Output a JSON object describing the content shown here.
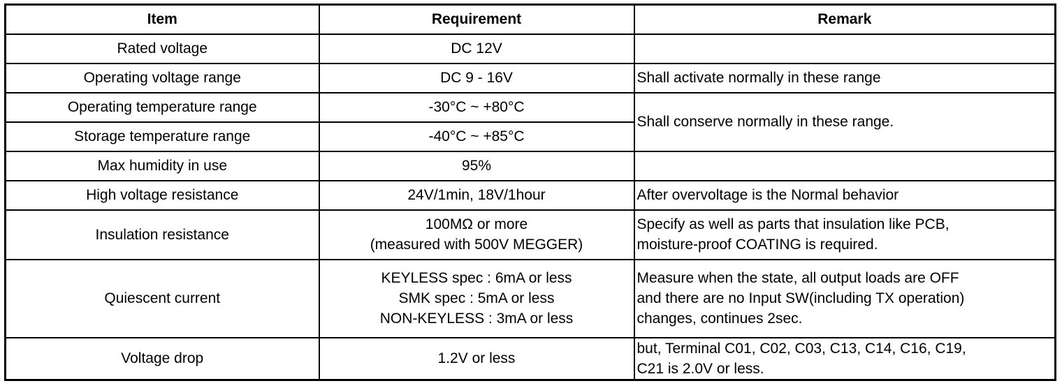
{
  "headers": [
    "Item",
    "Requirement",
    "Remark"
  ],
  "rows": [
    {
      "item": "Rated voltage",
      "requirement": [
        "DC 12V"
      ],
      "remark": []
    },
    {
      "item": "Operating voltage range",
      "requirement": [
        "DC 9 - 16V"
      ],
      "remark": [
        "Shall activate normally in these range"
      ]
    },
    {
      "item": "Operating temperature range",
      "requirement": [
        "-30°C ~ +80°C"
      ],
      "remark": [
        "Shall conserve normally in these range."
      ]
    },
    {
      "item": "Storage temperature range",
      "requirement": [
        "-40°C ~ +85°C"
      ],
      "remark": []
    },
    {
      "item": "Max humidity in use",
      "requirement": [
        "95%"
      ],
      "remark": []
    },
    {
      "item": "High voltage resistance",
      "requirement": [
        "24V/1min, 18V/1hour"
      ],
      "remark": [
        "After overvoltage is the Normal behavior"
      ]
    },
    {
      "item": "Insulation resistance",
      "requirement": [
        "100MΩ or more",
        "(measured with 500V MEGGER)"
      ],
      "remark": [
        "Specify as well as parts that insulation like PCB,",
        "moisture-proof COATING is required."
      ]
    },
    {
      "item": "Quiescent current",
      "requirement": [
        "KEYLESS spec : 6mA or less",
        "SMK spec : 5mA or less",
        "NON-KEYLESS : 3mA or less"
      ],
      "remark": [
        "Measure when the state, all output loads are OFF",
        "and there are no Input SW(including TX operation)",
        "changes, continues 2sec."
      ]
    },
    {
      "item": "Voltage drop",
      "requirement": [
        "1.2V or less"
      ],
      "remark": [
        "but, Terminal C01, C02, C03, C13, C14, C16, C19,",
        "C21 is 2.0V or less."
      ]
    }
  ]
}
